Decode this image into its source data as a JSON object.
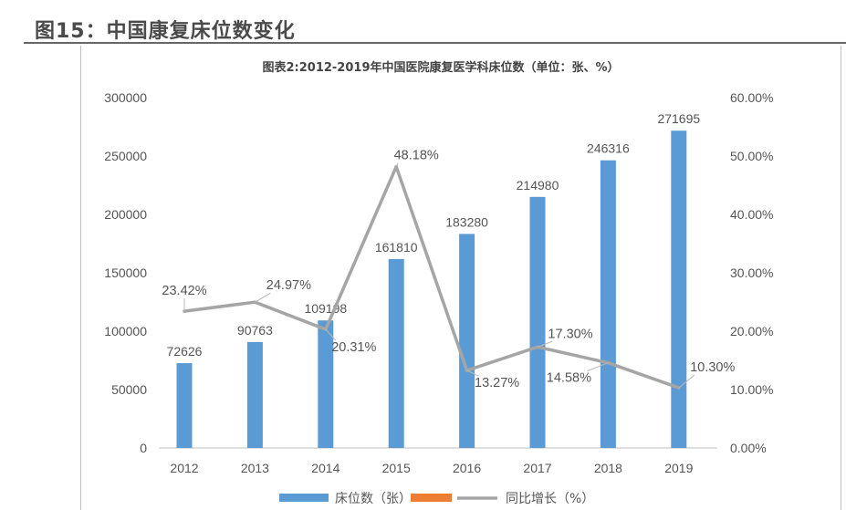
{
  "figure_title": "图15：中国康复床位数变化",
  "chart_data": {
    "type": "bar+line",
    "title": "图表2:2012-2019年中国医院康复医学科床位数（单位：张、%）",
    "categories": [
      "2012",
      "2013",
      "2014",
      "2015",
      "2016",
      "2017",
      "2018",
      "2019"
    ],
    "series": [
      {
        "name": "床位数（张）",
        "type": "bar",
        "axis": "left",
        "color": "#5b9bd5",
        "values": [
          72626,
          90763,
          109198,
          161810,
          183280,
          214980,
          246316,
          271695
        ],
        "labels": [
          "72626",
          "90763",
          "109198",
          "161810",
          "183280",
          "214980",
          "246316",
          "271695"
        ]
      },
      {
        "name": "",
        "type": "legend-only",
        "color": "#ed7d31"
      },
      {
        "name": "同比增长（%）",
        "type": "line",
        "axis": "right",
        "color": "#a5a5a5",
        "values": [
          23.42,
          24.97,
          20.31,
          48.18,
          13.27,
          17.3,
          14.58,
          10.3
        ],
        "labels": [
          "23.42%",
          "24.97%",
          "20.31%",
          "48.18%",
          "13.27%",
          "17.30%",
          "14.58%",
          "10.30%"
        ]
      }
    ],
    "left_axis": {
      "min": 0,
      "max": 300000,
      "step": 50000,
      "ticks": [
        "0",
        "50000",
        "100000",
        "150000",
        "200000",
        "250000",
        "300000"
      ]
    },
    "right_axis": {
      "min": 0,
      "max": 60,
      "step": 10,
      "ticks": [
        "0.00%",
        "10.00%",
        "20.00%",
        "30.00%",
        "40.00%",
        "50.00%",
        "60.00%"
      ]
    },
    "grid": false,
    "legend_position": "bottom"
  }
}
